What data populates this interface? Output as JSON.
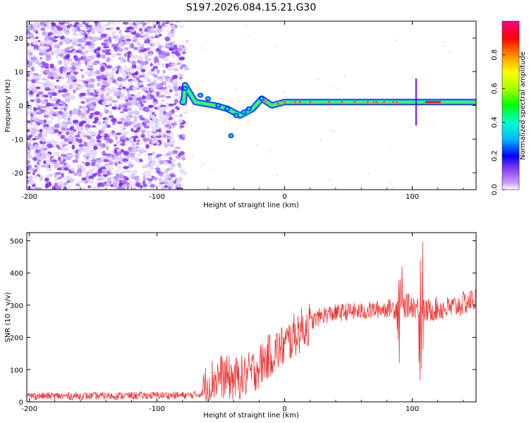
{
  "title": "S197.2026.084.15.21.G30",
  "chart_data": [
    {
      "type": "heatmap",
      "name": "spectrogram",
      "xlabel": "Height of straight line (km)",
      "ylabel": "Frequency (Hz)",
      "xlim": [
        -202,
        150
      ],
      "ylim": [
        -25,
        25
      ],
      "xticks": [
        -200,
        -100,
        0,
        100
      ],
      "yticks": [
        -20,
        -10,
        0,
        10,
        20
      ],
      "colorbar": {
        "label": "Normalized spectral amplitude",
        "range": [
          0,
          1
        ],
        "ticks": [
          0.0,
          0.2,
          0.4,
          0.6,
          0.8
        ],
        "tick_labels": [
          "0.0",
          "0.2",
          "0.4",
          "0.6",
          "0.8"
        ]
      },
      "regions": [
        {
          "desc": "scattered noise",
          "x": [
            -202,
            -75
          ],
          "freq": [
            -25,
            25
          ],
          "amplitude": [
            0.0,
            0.2
          ]
        },
        {
          "desc": "signal ridge",
          "x": [
            -80,
            150
          ],
          "freq_center_approx": [
            [
              -78,
              6
            ],
            [
              -70,
              1
            ],
            [
              -55,
              0
            ],
            [
              -45,
              -1
            ],
            [
              -35,
              -3
            ],
            [
              -25,
              -1
            ],
            [
              -18,
              2
            ],
            [
              -10,
              0
            ],
            [
              0,
              1
            ],
            [
              100,
              1
            ],
            [
              150,
              1
            ]
          ],
          "amplitude": [
            0.2,
            1.0
          ]
        }
      ]
    },
    {
      "type": "line",
      "name": "snr",
      "xlabel": "Height of straight line (km)",
      "ylabel": "SNR (10 * v/v)",
      "xlim": [
        -202,
        150
      ],
      "ylim": [
        0,
        525
      ],
      "xticks": [
        -200,
        -100,
        0,
        100
      ],
      "yticks": [
        0,
        100,
        200,
        300,
        400,
        500
      ],
      "series": [
        {
          "name": "SNR",
          "color": "#ee3333",
          "x": [
            -202,
            -150,
            -100,
            -75,
            -65,
            -60,
            -50,
            -40,
            -30,
            -20,
            -10,
            0,
            10,
            20,
            30,
            40,
            50,
            60,
            70,
            80,
            90,
            100,
            105,
            107,
            110,
            120,
            130,
            140,
            150
          ],
          "y": [
            18,
            18,
            20,
            20,
            25,
            60,
            80,
            70,
            80,
            110,
            150,
            175,
            215,
            245,
            270,
            275,
            280,
            280,
            285,
            290,
            295,
            300,
            290,
            300,
            280,
            290,
            290,
            305,
            320
          ]
        }
      ]
    }
  ]
}
